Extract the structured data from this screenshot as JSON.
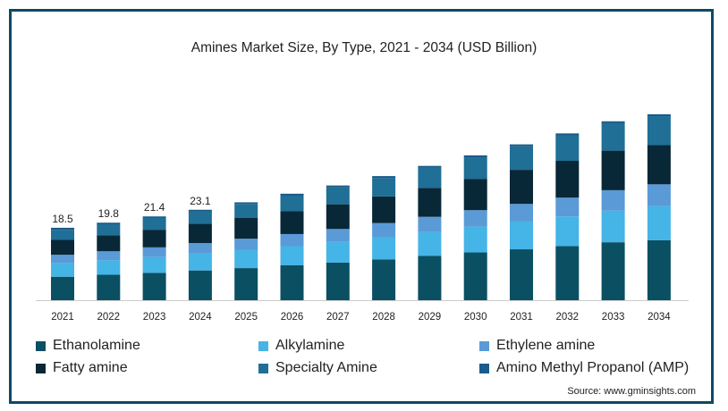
{
  "chart_data": {
    "type": "bar",
    "stacked": true,
    "title": "Amines Market Size, By Type, 2021 - 2034 (USD Billion)",
    "xlabel": "",
    "ylabel": "",
    "categories": [
      "2021",
      "2022",
      "2023",
      "2024",
      "2025",
      "2026",
      "2027",
      "2028",
      "2029",
      "2030",
      "2031",
      "2032",
      "2033",
      "2034"
    ],
    "ylim": [
      0,
      55
    ],
    "grid": false,
    "legend_position": "bottom",
    "total_labels": [
      "18.5",
      "19.8",
      "21.4",
      "23.1",
      null,
      null,
      null,
      null,
      null,
      null,
      null,
      null,
      null,
      null
    ],
    "series": [
      {
        "name": "Ethanolamine",
        "color": "#0b4f63",
        "values": [
          6.0,
          6.5,
          7.0,
          7.6,
          8.2,
          8.9,
          9.6,
          10.4,
          11.3,
          12.2,
          13.0,
          13.8,
          14.8,
          15.3
        ]
      },
      {
        "name": "Alkylamine",
        "color": "#45b4e6",
        "values": [
          3.5,
          3.7,
          4.0,
          4.3,
          4.6,
          4.9,
          5.3,
          5.7,
          6.1,
          6.6,
          7.1,
          7.6,
          8.1,
          8.7
        ]
      },
      {
        "name": "Ethylene amine",
        "color": "#5a9ad6",
        "values": [
          2.1,
          2.3,
          2.5,
          2.7,
          2.9,
          3.1,
          3.3,
          3.6,
          3.9,
          4.2,
          4.5,
          4.8,
          5.2,
          5.6
        ]
      },
      {
        "name": "Fatty amine",
        "color": "#082737",
        "values": [
          3.8,
          4.1,
          4.5,
          4.9,
          5.3,
          5.8,
          6.3,
          6.8,
          7.4,
          8.0,
          8.7,
          9.4,
          10.1,
          10.0
        ]
      },
      {
        "name": "Specialty Amine",
        "color": "#1f6f96",
        "values": [
          2.6,
          2.8,
          3.0,
          3.2,
          3.6,
          4.0,
          4.3,
          4.7,
          5.1,
          5.5,
          6.0,
          6.5,
          7.0,
          7.4
        ]
      },
      {
        "name": "Amino Methyl Propanol (AMP)",
        "color": "#1b5a8a",
        "values": [
          0.5,
          0.4,
          0.4,
          0.4,
          0.4,
          0.5,
          0.5,
          0.5,
          0.5,
          0.5,
          0.5,
          0.5,
          0.5,
          0.5
        ]
      }
    ]
  },
  "legend": {
    "items": [
      {
        "label": "Ethanolamine",
        "color": "#0b4f63"
      },
      {
        "label": "Alkylamine",
        "color": "#45b4e6"
      },
      {
        "label": "Ethylene amine",
        "color": "#5a9ad6"
      },
      {
        "label": "Fatty amine",
        "color": "#082737"
      },
      {
        "label": "Specialty Amine",
        "color": "#1f6f96"
      },
      {
        "label": "Amino Methyl Propanol (AMP)",
        "color": "#1b5a8a"
      }
    ]
  },
  "source": "Source: www.gminsights.com"
}
